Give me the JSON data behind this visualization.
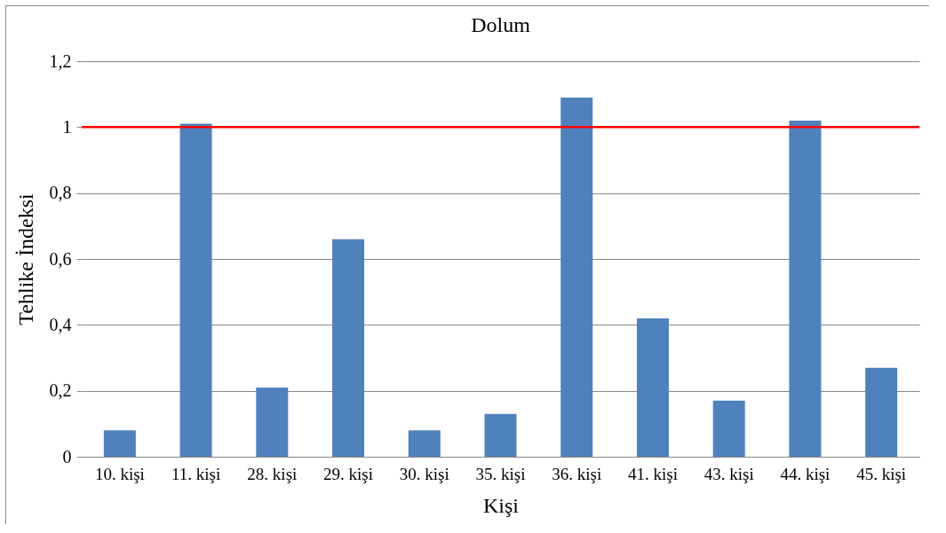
{
  "chart_data": {
    "type": "bar",
    "title": "Dolum",
    "xlabel": "Kişi",
    "ylabel": "Tehlike İndeksi",
    "categories": [
      "10. kişi",
      "11. kişi",
      "28. kişi",
      "29. kişi",
      "30. kişi",
      "35. kişi",
      "36. kişi",
      "41. kişi",
      "43. kişi",
      "44. kişi",
      "45. kişi"
    ],
    "values": [
      0.08,
      1.01,
      0.21,
      0.66,
      0.08,
      0.13,
      1.09,
      0.42,
      0.17,
      1.02,
      0.27
    ],
    "color": "#4f81bd",
    "ylim": [
      0,
      1.2
    ],
    "yticks": [
      0,
      {
        "value": 0.2,
        "label": "0,2"
      },
      {
        "value": 0.4,
        "label": "0,4"
      },
      {
        "value": 0.6,
        "label": "0,6"
      },
      {
        "value": 0.8,
        "label": "0,8"
      },
      1,
      {
        "value": 1.2,
        "label": "1,2"
      }
    ],
    "grid": "y",
    "ref_lines": [
      {
        "axis": "y",
        "value": 1,
        "color": "#ff0000"
      }
    ]
  }
}
